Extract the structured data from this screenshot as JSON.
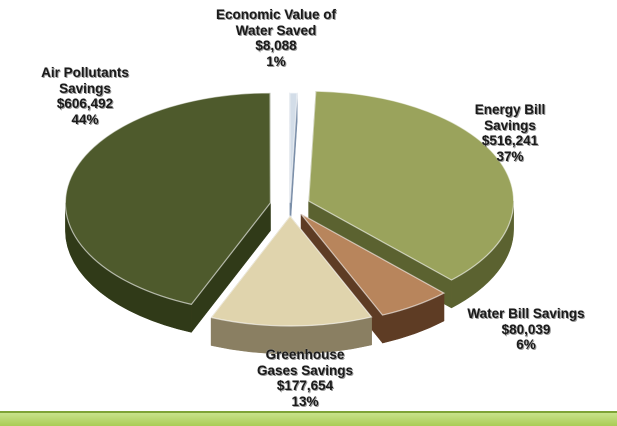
{
  "chart_data": {
    "type": "pie",
    "title": "",
    "slices": [
      {
        "key": "energy",
        "lines": [
          "Energy Bill",
          "Savings"
        ],
        "value_label": "$516,241",
        "percent_label": "37%",
        "value": 516241,
        "percent": 37,
        "top_color": "#9aa35c",
        "side_color": "#5b6230"
      },
      {
        "key": "water_bill",
        "lines": [
          "Water Bill Savings"
        ],
        "value_label": "$80,039",
        "percent_label": "6%",
        "value": 80039,
        "percent": 6,
        "top_color": "#b8855c",
        "side_color": "#5e3c24"
      },
      {
        "key": "ghg",
        "lines": [
          "Greenhouse",
          "Gases Savings"
        ],
        "value_label": "$177,654",
        "percent_label": "13%",
        "value": 177654,
        "percent": 13,
        "top_color": "#e0d4ad",
        "side_color": "#8a7f62"
      },
      {
        "key": "air",
        "lines": [
          "Air Pollutants",
          "Savings"
        ],
        "value_label": "$606,492",
        "percent_label": "44%",
        "value": 606492,
        "percent": 44,
        "top_color": "#4e5a2c",
        "side_color": "#303a18"
      },
      {
        "key": "water_value",
        "lines": [
          "Economic Value of",
          "Water Saved"
        ],
        "value_label": "$8,088",
        "percent_label": "1%",
        "value": 8088,
        "percent": 1,
        "top_color": "#d3dde8",
        "side_color": "#7a8ea8"
      }
    ],
    "legend": "none",
    "style": "3d-exploded"
  }
}
